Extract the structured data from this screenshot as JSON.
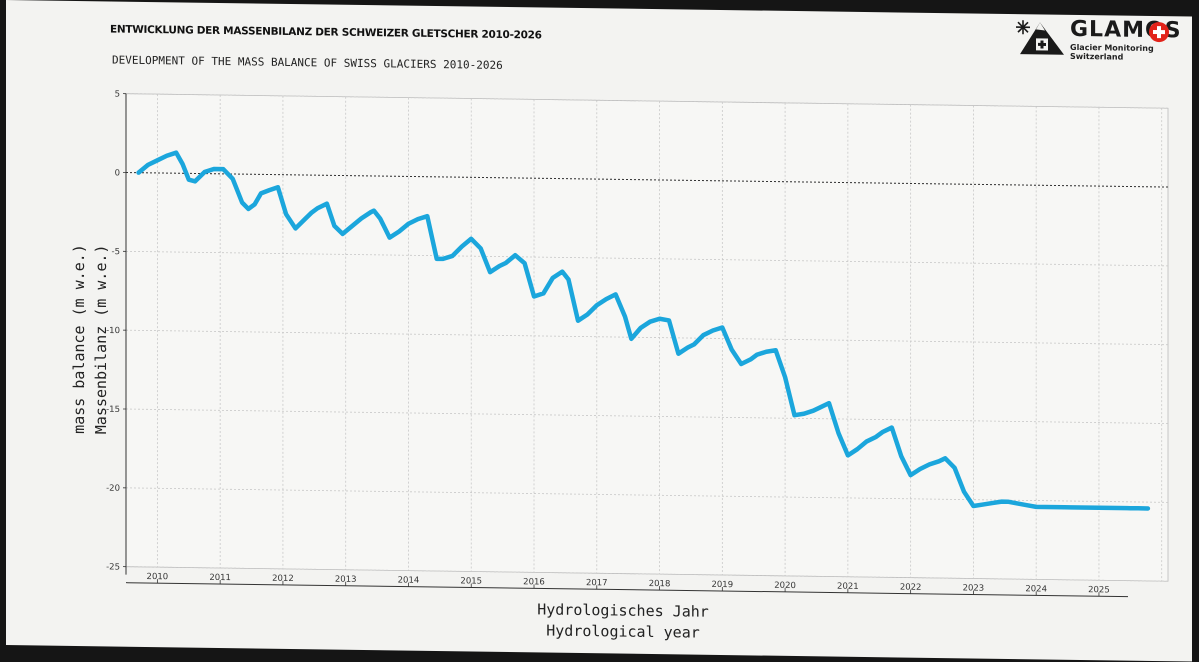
{
  "header": {
    "title_de": "ENTWICKLUNG DER MASSENBILANZ DER SCHWEIZER GLETSCHER 2010-2026",
    "title_en": "DEVELOPMENT OF THE MASS BALANCE OF SWISS GLACIERS 2010-2026"
  },
  "logo": {
    "name": "GLAMOS",
    "subtitle": "Glacier Monitoring Switzerland",
    "icons": [
      "snowflake-icon",
      "mountain-icon",
      "swiss-cross-icon"
    ],
    "colors": {
      "red": "#e2231a",
      "dark": "#1a1a1a"
    }
  },
  "chart_data": {
    "type": "line",
    "title": "",
    "ylabel_en": "mass balance (m w.e.)",
    "ylabel_de": "Massenbilanz (m w.e.)",
    "xlabel_de": "Hydrologisches Jahr",
    "xlabel_en": "Hydrological year",
    "xlim": [
      2009.5,
      2026.1
    ],
    "ylim": [
      -25,
      5
    ],
    "yticks": [
      5,
      0,
      -5,
      -10,
      -15,
      -20,
      -25
    ],
    "xticks": [
      2010,
      2011,
      2012,
      2013,
      2014,
      2015,
      2016,
      2017,
      2018,
      2019,
      2020,
      2021,
      2022,
      2023,
      2024,
      2025
    ],
    "grid": true,
    "zero_reference_line": true,
    "line_color": "#1ba6dc",
    "series": [
      {
        "x": [
          2009.7,
          2009.85,
          2010.0,
          2010.15,
          2010.3,
          2010.4,
          2010.5,
          2010.6,
          2010.75,
          2010.9,
          2011.05,
          2011.2,
          2011.35,
          2011.45,
          2011.55,
          2011.65,
          2011.78,
          2011.92,
          2012.05,
          2012.2,
          2012.35,
          2012.45,
          2012.55,
          2012.7,
          2012.82,
          2012.95,
          2013.1,
          2013.25,
          2013.4,
          2013.45,
          2013.55,
          2013.7,
          2013.85,
          2014.0,
          2014.15,
          2014.3,
          2014.45,
          2014.55,
          2014.7,
          2014.85,
          2015.0,
          2015.15,
          2015.3,
          2015.45,
          2015.55,
          2015.7,
          2015.85,
          2016.0,
          2016.15,
          2016.3,
          2016.45,
          2016.55,
          2016.7,
          2016.85,
          2017.0,
          2017.15,
          2017.3,
          2017.45,
          2017.55,
          2017.7,
          2017.85,
          2018.0,
          2018.15,
          2018.3,
          2018.45,
          2018.55,
          2018.7,
          2018.85,
          2019.0,
          2019.15,
          2019.3,
          2019.45,
          2019.55,
          2019.7,
          2019.85,
          2020.0,
          2020.15,
          2020.3,
          2020.45,
          2020.55,
          2020.7,
          2020.85,
          2021.0,
          2021.15,
          2021.3,
          2021.45,
          2021.55,
          2021.7,
          2021.85,
          2022.0,
          2022.15,
          2022.3,
          2022.45,
          2022.55,
          2022.7,
          2022.85,
          2023.0,
          2023.15,
          2023.3,
          2023.45,
          2023.55,
          2023.7,
          2023.85,
          2024.0,
          2024.15,
          2024.3,
          2024.45,
          2024.55,
          2024.7,
          2024.85,
          2025.0,
          2025.15,
          2025.3,
          2025.45,
          2025.5,
          2025.55,
          2025.62,
          2025.7,
          2025.78
        ],
        "y": [
          0.0,
          0.5,
          0.8,
          1.1,
          1.3,
          0.6,
          -0.4,
          -0.5,
          0.1,
          0.3,
          0.3,
          -0.3,
          -1.8,
          -2.2,
          -1.9,
          -1.2,
          -1.0,
          -0.8,
          -2.5,
          -3.4,
          -2.8,
          -2.4,
          -2.1,
          -1.8,
          -3.2,
          -3.7,
          -3.2,
          -2.7,
          -2.3,
          -2.2,
          -2.7,
          -3.9,
          -3.5,
          -3.0,
          -2.7,
          -2.5,
          -5.2,
          -5.2,
          -5.0,
          -4.4,
          -3.9,
          -4.5,
          -6.0,
          -5.6,
          -5.4,
          -4.9,
          -5.4,
          -7.5,
          -7.3,
          -6.3,
          -5.9,
          -6.4,
          -9.0,
          -8.6,
          -8.0,
          -7.6,
          -7.3,
          -8.7,
          -10.1,
          -9.4,
          -9.0,
          -8.8,
          -8.9,
          -11.0,
          -10.6,
          -10.4,
          -9.8,
          -9.5,
          -9.3,
          -10.7,
          -11.6,
          -11.3,
          -11.0,
          -10.8,
          -10.7,
          -12.4,
          -14.8,
          -14.7,
          -14.5,
          -14.3,
          -14.0,
          -15.9,
          -17.3,
          -16.9,
          -16.4,
          -16.1,
          -15.8,
          -15.5,
          -17.3,
          -18.5,
          -18.1,
          -17.8,
          -17.6,
          -17.4,
          -18.0,
          -19.5,
          -20.4,
          -20.3,
          -20.2,
          -20.1,
          -20.1,
          -20.2,
          -20.3,
          -20.4,
          -20.4,
          -20.4,
          -20.4,
          -20.4,
          -20.4,
          -20.4,
          -20.4,
          -20.4,
          -20.4,
          -20.4,
          -20.4,
          -20.4,
          -20.4,
          -20.4,
          -20.4
        ],
        "note_points": 119
      }
    ]
  }
}
